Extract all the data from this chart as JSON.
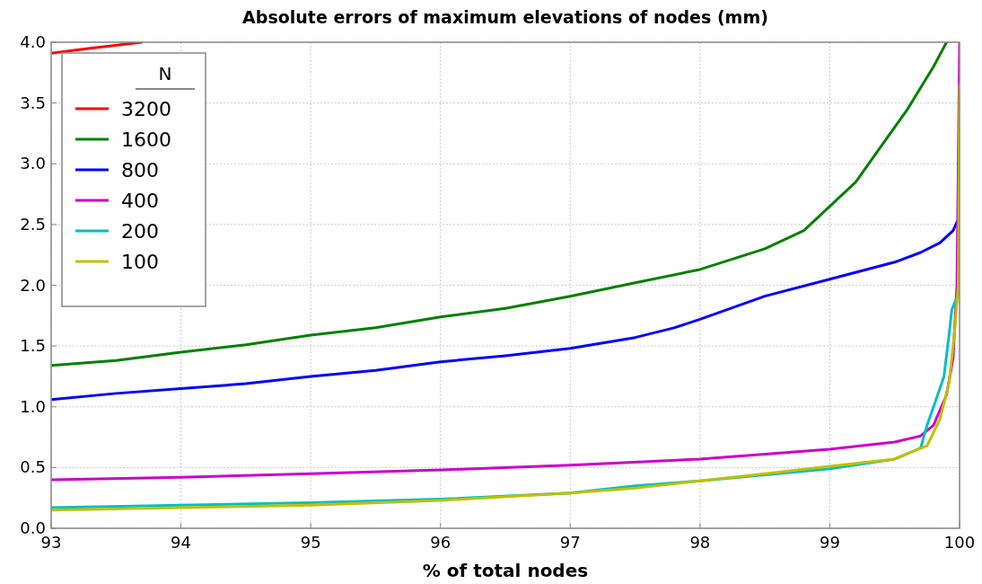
{
  "chart_data": {
    "type": "line",
    "title": "Absolute errors of maximum elevations of nodes (mm)",
    "xlabel": "% of total nodes",
    "legend_title": "N",
    "xlim": [
      93,
      100
    ],
    "ylim": [
      0,
      4
    ],
    "xticks": [
      93,
      94,
      95,
      96,
      97,
      98,
      99,
      100
    ],
    "yticks": [
      {
        "value": 0,
        "label": "0.0"
      },
      {
        "value": 0.5,
        "label": "0.5"
      },
      {
        "value": 1,
        "label": "1.0"
      },
      {
        "value": 1.5,
        "label": "1.5"
      },
      {
        "value": 2,
        "label": "2.0"
      },
      {
        "value": 2.5,
        "label": "2.5"
      },
      {
        "value": 3,
        "label": "3.0"
      },
      {
        "value": 3.5,
        "label": "3.5"
      },
      {
        "value": 4,
        "label": "4.0"
      }
    ],
    "grid": true,
    "legend": "top left",
    "series": [
      {
        "name": "3200",
        "color": "#ff0000",
        "x": [
          93,
          93.3,
          93.7
        ],
        "values": [
          3.91,
          3.95,
          4.0
        ]
      },
      {
        "name": "1600",
        "color": "#008000",
        "x": [
          93,
          93.5,
          94,
          94.5,
          95,
          95.5,
          96,
          96.5,
          97,
          97.5,
          98,
          98.5,
          98.8,
          99,
          99.2,
          99.4,
          99.6,
          99.8,
          99.9
        ],
        "values": [
          1.34,
          1.38,
          1.45,
          1.51,
          1.59,
          1.65,
          1.74,
          1.81,
          1.91,
          2.02,
          2.13,
          2.3,
          2.45,
          2.65,
          2.85,
          3.15,
          3.45,
          3.8,
          4.0
        ]
      },
      {
        "name": "800",
        "color": "#0000ff",
        "x": [
          93,
          93.5,
          94,
          94.5,
          95,
          95.5,
          96,
          96.5,
          97,
          97.5,
          97.8,
          98,
          98.5,
          99,
          99.5,
          99.7,
          99.85,
          99.95,
          99.98
        ],
        "values": [
          1.06,
          1.11,
          1.15,
          1.19,
          1.25,
          1.3,
          1.37,
          1.42,
          1.48,
          1.57,
          1.65,
          1.72,
          1.91,
          2.05,
          2.19,
          2.27,
          2.35,
          2.45,
          2.52
        ]
      },
      {
        "name": "400",
        "color": "#cc00cc",
        "x": [
          93,
          94,
          95,
          96,
          97,
          98,
          98.5,
          99,
          99.5,
          99.7,
          99.8,
          99.9,
          99.95,
          99.98,
          100
        ],
        "values": [
          0.4,
          0.42,
          0.45,
          0.48,
          0.52,
          0.57,
          0.61,
          0.65,
          0.71,
          0.76,
          0.85,
          1.1,
          1.4,
          2.0,
          4.0
        ]
      },
      {
        "name": "200",
        "color": "#00c0c0",
        "x": [
          93,
          94,
          95,
          96,
          97,
          97.5,
          98,
          98.5,
          99,
          99.5,
          99.7,
          99.75,
          99.8,
          99.88,
          99.92,
          99.94,
          100
        ],
        "values": [
          0.17,
          0.19,
          0.21,
          0.24,
          0.29,
          0.35,
          0.39,
          0.44,
          0.49,
          0.57,
          0.66,
          0.85,
          1.0,
          1.25,
          1.6,
          1.8,
          1.95
        ]
      },
      {
        "name": "100",
        "color": "#c0c000",
        "x": [
          93,
          94,
          95,
          96,
          97,
          97.5,
          98,
          98.5,
          99,
          99.5,
          99.75,
          99.85,
          99.92,
          99.96,
          99.99,
          100
        ],
        "values": [
          0.15,
          0.17,
          0.19,
          0.23,
          0.29,
          0.33,
          0.39,
          0.45,
          0.51,
          0.57,
          0.68,
          0.9,
          1.2,
          1.6,
          2.0,
          3.65
        ]
      }
    ]
  }
}
